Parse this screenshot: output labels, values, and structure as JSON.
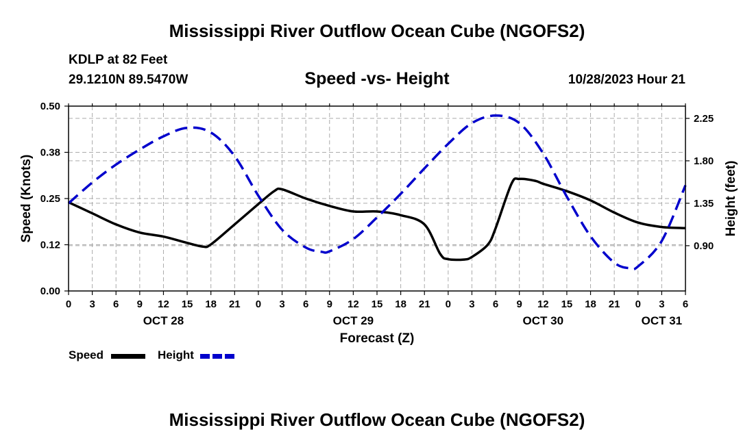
{
  "header": {
    "title": "Mississippi River Outflow Ocean Cube (NGOFS2)",
    "station": "KDLP at 82 Feet",
    "coords": "29.1210N  89.5470W",
    "subtitle": "Speed -vs- Height",
    "datetime": "10/28/2023 Hour 21"
  },
  "footer": {
    "title": "Mississippi River Outflow Ocean Cube (NGOFS2)"
  },
  "legend": {
    "speed_label": "Speed",
    "height_label": "Height"
  },
  "colors": {
    "speed": "#000000",
    "height": "#0000cc",
    "grid": "#aaaaaa"
  },
  "chart_data": {
    "type": "line",
    "xlabel": "Forecast (Z)",
    "ylabel": "Speed (Knots)",
    "y2label": "Height (feet)",
    "xlim": [
      0,
      78
    ],
    "ylim": [
      0,
      0.5
    ],
    "y2lim": [
      0.42,
      2.38
    ],
    "x_tick_values": [
      0,
      3,
      6,
      9,
      12,
      15,
      18,
      21,
      24,
      27,
      30,
      33,
      36,
      39,
      42,
      45,
      48,
      51,
      54,
      57,
      60,
      63,
      66,
      69,
      72,
      75,
      78
    ],
    "x_tick_labels": [
      "0",
      "3",
      "6",
      "9",
      "12",
      "15",
      "18",
      "21",
      "0",
      "3",
      "6",
      "9",
      "12",
      "15",
      "18",
      "21",
      "0",
      "3",
      "6",
      "9",
      "12",
      "15",
      "18",
      "21",
      "0",
      "3",
      "6"
    ],
    "date_labels": [
      {
        "x": 12,
        "label": "OCT 28"
      },
      {
        "x": 36,
        "label": "OCT 29"
      },
      {
        "x": 60,
        "label": "OCT 30"
      },
      {
        "x": 75,
        "label": "OCT 31"
      }
    ],
    "y_tick_values": [
      0,
      0.125,
      0.25,
      0.375,
      0.5
    ],
    "y_tick_labels": [
      "0.00",
      "0.12",
      "0.25",
      "0.38",
      "0.50"
    ],
    "y2_tick_values": [
      0.9,
      1.35,
      1.8,
      2.25
    ],
    "y2_tick_labels": [
      "0.90",
      "1.35",
      "1.80",
      "2.25"
    ],
    "series": [
      {
        "name": "Speed",
        "axis": "left",
        "x": [
          0,
          3,
          6,
          9,
          12,
          15,
          17,
          18,
          21,
          24,
          26,
          27,
          30,
          33,
          36,
          39,
          42,
          45,
          47,
          48,
          50,
          51,
          53,
          54,
          56,
          57,
          59,
          60,
          63,
          66,
          69,
          72,
          75,
          78
        ],
        "values": [
          0.24,
          0.21,
          0.18,
          0.158,
          0.147,
          0.13,
          0.12,
          0.126,
          0.18,
          0.235,
          0.27,
          0.275,
          0.25,
          0.23,
          0.215,
          0.215,
          0.205,
          0.18,
          0.1,
          0.086,
          0.085,
          0.092,
          0.125,
          0.17,
          0.29,
          0.303,
          0.298,
          0.29,
          0.27,
          0.245,
          0.212,
          0.185,
          0.173,
          0.17
        ]
      },
      {
        "name": "Height",
        "axis": "right",
        "x": [
          0,
          3,
          6,
          9,
          12,
          15,
          18,
          21,
          24,
          27,
          30,
          32,
          33,
          36,
          39,
          42,
          45,
          48,
          51,
          54,
          57,
          60,
          63,
          66,
          69,
          71,
          72,
          75,
          78
        ],
        "values": [
          1.35,
          1.57,
          1.76,
          1.92,
          2.06,
          2.15,
          2.1,
          1.85,
          1.43,
          1.07,
          0.88,
          0.835,
          0.84,
          0.97,
          1.2,
          1.45,
          1.72,
          1.98,
          2.2,
          2.28,
          2.2,
          1.88,
          1.42,
          1.0,
          0.72,
          0.66,
          0.68,
          0.95,
          1.54
        ]
      }
    ]
  }
}
